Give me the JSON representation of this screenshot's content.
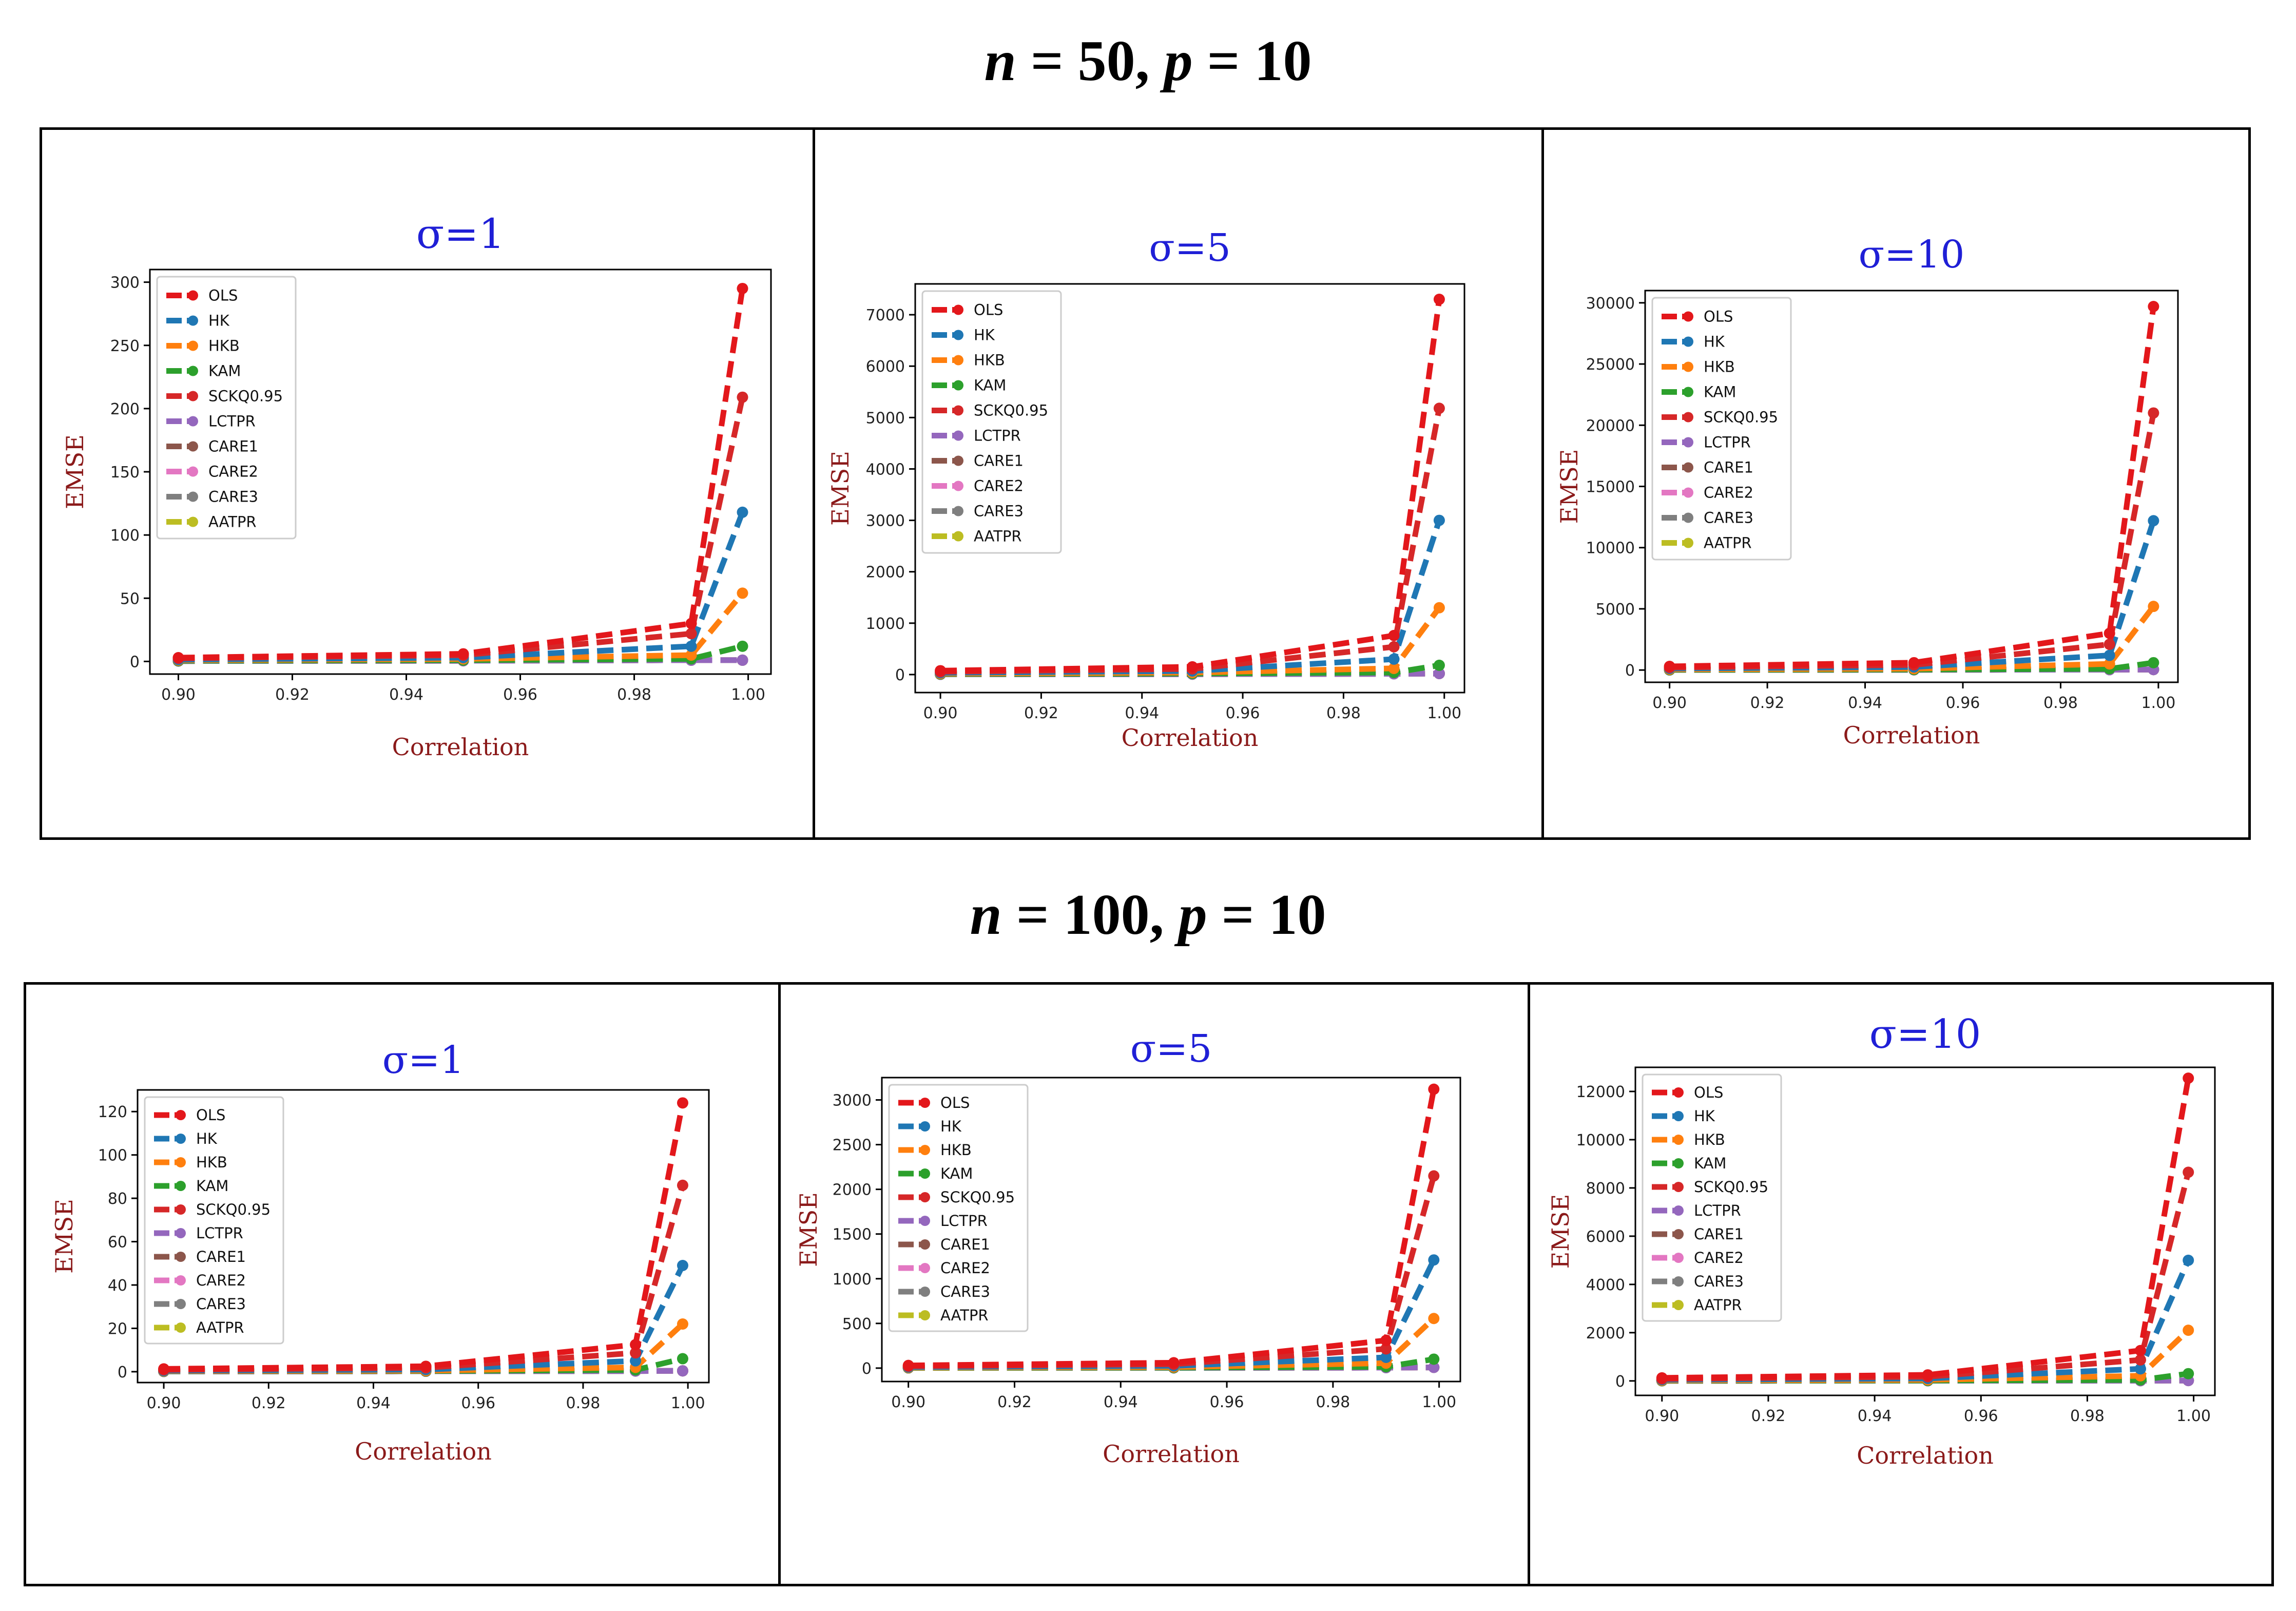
{
  "sections": [
    {
      "n_label": "n",
      "n_value": "50",
      "p_label": "p",
      "p_value": "10"
    },
    {
      "n_label": "n",
      "n_value": "100",
      "p_label": "p",
      "p_value": "10"
    }
  ],
  "colors": {
    "OLS": "#e3171b",
    "HK": "#1f77b4",
    "HKB": "#ff7f0e",
    "KAM": "#2ca02c",
    "SCKQ0.95": "#d62728",
    "LCTPR": "#9467bd",
    "CARE1": "#8c564b",
    "CARE2": "#e377c2",
    "CARE3": "#7f7f7f",
    "AATPR": "#bcbd22"
  },
  "chart_data": [
    {
      "type": "line",
      "panel": "n=50, p=10",
      "title": "σ=1",
      "xlabel": "Correlation",
      "ylabel": "EMSE",
      "x": [
        0.9,
        0.95,
        0.99,
        0.999
      ],
      "xlim": [
        0.895,
        1.004
      ],
      "ylim": [
        -10,
        310
      ],
      "xticks": [
        "0.90",
        "0.92",
        "0.94",
        "0.96",
        "0.98",
        "1.00"
      ],
      "yticks": [
        0,
        50,
        100,
        150,
        200,
        250,
        300
      ],
      "series": [
        {
          "name": "OLS",
          "values": [
            3,
            6,
            30,
            295
          ]
        },
        {
          "name": "HK",
          "values": [
            1.5,
            3,
            12,
            118
          ]
        },
        {
          "name": "HKB",
          "values": [
            1,
            2,
            5,
            54
          ]
        },
        {
          "name": "KAM",
          "values": [
            0.5,
            1,
            2,
            12
          ]
        },
        {
          "name": "SCKQ0.95",
          "values": [
            2.5,
            5,
            22,
            209
          ]
        },
        {
          "name": "LCTPR",
          "values": [
            0.3,
            0.5,
            1,
            1
          ]
        },
        {
          "name": "CARE1",
          "values": [
            0.3,
            0.5,
            1,
            1
          ]
        },
        {
          "name": "CARE2",
          "values": [
            0.3,
            0.5,
            1,
            1
          ]
        },
        {
          "name": "CARE3",
          "values": [
            0.3,
            0.5,
            1,
            1
          ]
        },
        {
          "name": "AATPR",
          "values": [
            0.3,
            0.5,
            1,
            1
          ]
        }
      ]
    },
    {
      "type": "line",
      "panel": "n=50, p=10",
      "title": "σ=5",
      "xlabel": "Correlation",
      "ylabel": "EMSE",
      "x": [
        0.9,
        0.95,
        0.99,
        0.999
      ],
      "xlim": [
        0.895,
        1.004
      ],
      "ylim": [
        -350,
        7600
      ],
      "xticks": [
        "0.90",
        "0.92",
        "0.94",
        "0.96",
        "0.98",
        "1.00"
      ],
      "yticks": [
        0,
        1000,
        2000,
        3000,
        4000,
        5000,
        6000,
        7000
      ],
      "series": [
        {
          "name": "OLS",
          "values": [
            75,
            150,
            760,
            7300
          ]
        },
        {
          "name": "HK",
          "values": [
            35,
            70,
            300,
            3000
          ]
        },
        {
          "name": "HKB",
          "values": [
            20,
            40,
            120,
            1300
          ]
        },
        {
          "name": "KAM",
          "values": [
            10,
            20,
            40,
            180
          ]
        },
        {
          "name": "SCKQ0.95",
          "values": [
            55,
            110,
            540,
            5180
          ]
        },
        {
          "name": "LCTPR",
          "values": [
            5,
            8,
            15,
            20
          ]
        },
        {
          "name": "CARE1",
          "values": [
            5,
            8,
            15,
            20
          ]
        },
        {
          "name": "CARE2",
          "values": [
            5,
            8,
            15,
            20
          ]
        },
        {
          "name": "CARE3",
          "values": [
            5,
            8,
            15,
            20
          ]
        },
        {
          "name": "AATPR",
          "values": [
            5,
            8,
            15,
            20
          ]
        }
      ]
    },
    {
      "type": "line",
      "panel": "n=50, p=10",
      "title": "σ=10",
      "xlabel": "Correlation",
      "ylabel": "EMSE",
      "x": [
        0.9,
        0.95,
        0.99,
        0.999
      ],
      "xlim": [
        0.895,
        1.004
      ],
      "ylim": [
        -1000,
        31000
      ],
      "xticks": [
        "0.90",
        "0.92",
        "0.94",
        "0.96",
        "0.98",
        "1.00"
      ],
      "yticks": [
        0,
        5000,
        10000,
        15000,
        20000,
        25000,
        30000
      ],
      "series": [
        {
          "name": "OLS",
          "values": [
            300,
            600,
            3000,
            29700
          ]
        },
        {
          "name": "HK",
          "values": [
            130,
            250,
            1200,
            12200
          ]
        },
        {
          "name": "HKB",
          "values": [
            60,
            110,
            500,
            5200
          ]
        },
        {
          "name": "KAM",
          "values": [
            20,
            40,
            100,
            600
          ]
        },
        {
          "name": "SCKQ0.95",
          "values": [
            210,
            420,
            2100,
            21000
          ]
        },
        {
          "name": "LCTPR",
          "values": [
            10,
            20,
            30,
            40
          ]
        },
        {
          "name": "CARE1",
          "values": [
            10,
            20,
            30,
            40
          ]
        },
        {
          "name": "CARE2",
          "values": [
            10,
            20,
            30,
            40
          ]
        },
        {
          "name": "CARE3",
          "values": [
            10,
            20,
            30,
            40
          ]
        },
        {
          "name": "AATPR",
          "values": [
            10,
            20,
            30,
            40
          ]
        }
      ]
    },
    {
      "type": "line",
      "panel": "n=100, p=10",
      "title": "σ=1",
      "xlabel": "Correlation",
      "ylabel": "EMSE",
      "x": [
        0.9,
        0.95,
        0.99,
        0.999
      ],
      "xlim": [
        0.895,
        1.004
      ],
      "ylim": [
        -5,
        130
      ],
      "xticks": [
        "0.90",
        "0.92",
        "0.94",
        "0.96",
        "0.98",
        "1.00"
      ],
      "yticks": [
        0,
        20,
        40,
        60,
        80,
        100,
        120
      ],
      "series": [
        {
          "name": "OLS",
          "values": [
            1.3,
            2.5,
            12.5,
            124
          ]
        },
        {
          "name": "HK",
          "values": [
            0.5,
            1,
            5,
            49
          ]
        },
        {
          "name": "HKB",
          "values": [
            0.3,
            0.5,
            2,
            22
          ]
        },
        {
          "name": "KAM",
          "values": [
            0.2,
            0.3,
            0.8,
            6
          ]
        },
        {
          "name": "SCKQ0.95",
          "values": [
            0.9,
            1.8,
            8.7,
            86
          ]
        },
        {
          "name": "LCTPR",
          "values": [
            0.1,
            0.2,
            0.3,
            0.4
          ]
        },
        {
          "name": "CARE1",
          "values": [
            0.1,
            0.2,
            0.3,
            0.4
          ]
        },
        {
          "name": "CARE2",
          "values": [
            0.1,
            0.2,
            0.3,
            0.4
          ]
        },
        {
          "name": "CARE3",
          "values": [
            0.1,
            0.2,
            0.3,
            0.4
          ]
        },
        {
          "name": "AATPR",
          "values": [
            0.1,
            0.2,
            0.3,
            0.4
          ]
        }
      ]
    },
    {
      "type": "line",
      "panel": "n=100, p=10",
      "title": "σ=5",
      "xlabel": "Correlation",
      "ylabel": "EMSE",
      "x": [
        0.9,
        0.95,
        0.99,
        0.999
      ],
      "xlim": [
        0.895,
        1.004
      ],
      "ylim": [
        -150,
        3250
      ],
      "xticks": [
        "0.90",
        "0.92",
        "0.94",
        "0.96",
        "0.98",
        "1.00"
      ],
      "yticks": [
        0,
        500,
        1000,
        1500,
        2000,
        2500,
        3000
      ],
      "series": [
        {
          "name": "OLS",
          "values": [
            30,
            60,
            310,
            3120
          ]
        },
        {
          "name": "HK",
          "values": [
            12,
            25,
            120,
            1210
          ]
        },
        {
          "name": "HKB",
          "values": [
            6,
            12,
            55,
            555
          ]
        },
        {
          "name": "KAM",
          "values": [
            3,
            5,
            15,
            100
          ]
        },
        {
          "name": "SCKQ0.95",
          "values": [
            22,
            44,
            215,
            2150
          ]
        },
        {
          "name": "LCTPR",
          "values": [
            2,
            3,
            5,
            8
          ]
        },
        {
          "name": "CARE1",
          "values": [
            2,
            3,
            5,
            8
          ]
        },
        {
          "name": "CARE2",
          "values": [
            2,
            3,
            5,
            8
          ]
        },
        {
          "name": "CARE3",
          "values": [
            2,
            3,
            5,
            8
          ]
        },
        {
          "name": "AATPR",
          "values": [
            2,
            3,
            5,
            8
          ]
        }
      ]
    },
    {
      "type": "line",
      "panel": "n=100, p=10",
      "title": "σ=10",
      "xlabel": "Correlation",
      "ylabel": "EMSE",
      "x": [
        0.9,
        0.95,
        0.99,
        0.999
      ],
      "xlim": [
        0.895,
        1.004
      ],
      "ylim": [
        -600,
        13000
      ],
      "xticks": [
        "0.90",
        "0.92",
        "0.94",
        "0.96",
        "0.98",
        "1.00"
      ],
      "yticks": [
        0,
        2000,
        4000,
        6000,
        8000,
        10000,
        12000
      ],
      "series": [
        {
          "name": "OLS",
          "values": [
            125,
            250,
            1260,
            12550
          ]
        },
        {
          "name": "HK",
          "values": [
            50,
            100,
            500,
            5000
          ]
        },
        {
          "name": "HKB",
          "values": [
            22,
            44,
            210,
            2100
          ]
        },
        {
          "name": "KAM",
          "values": [
            8,
            15,
            40,
            300
          ]
        },
        {
          "name": "SCKQ0.95",
          "values": [
            87,
            175,
            870,
            8650
          ]
        },
        {
          "name": "LCTPR",
          "values": [
            4,
            7,
            10,
            15
          ]
        },
        {
          "name": "CARE1",
          "values": [
            4,
            7,
            10,
            15
          ]
        },
        {
          "name": "CARE2",
          "values": [
            4,
            7,
            10,
            15
          ]
        },
        {
          "name": "CARE3",
          "values": [
            4,
            7,
            10,
            15
          ]
        },
        {
          "name": "AATPR",
          "values": [
            4,
            7,
            10,
            15
          ]
        }
      ]
    }
  ]
}
